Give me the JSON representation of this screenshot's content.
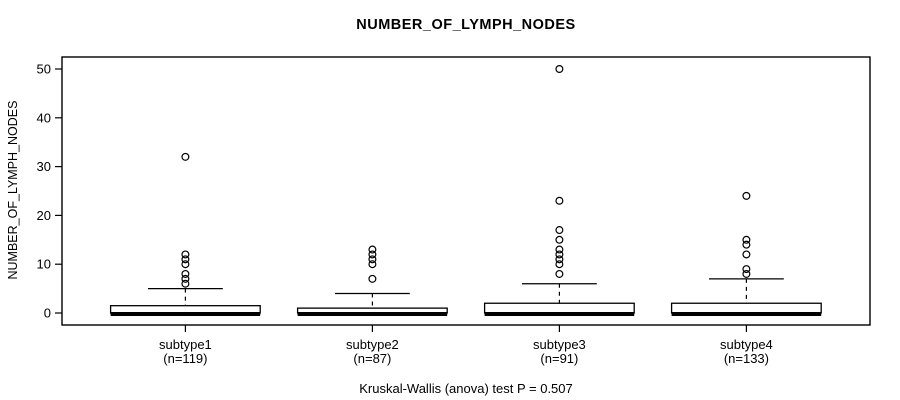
{
  "chart_data": {
    "type": "boxplot",
    "title": "NUMBER_OF_LYMPH_NODES",
    "ylabel": "NUMBER_OF_LYMPH_NODES",
    "xlabel": "",
    "footer": "Kruskal-Wallis (anova) test P = 0.507",
    "ylim": [
      0,
      50
    ],
    "yticks": [
      0,
      10,
      20,
      30,
      40,
      50
    ],
    "grid": false,
    "legend": null,
    "colors": {
      "stroke": "#000000",
      "box_fill": "#ffffff",
      "background": "#ffffff"
    },
    "groups": [
      {
        "label": "subtype1",
        "n_label": "(n=119)",
        "q1": 0,
        "median": 0,
        "q3": 1.5,
        "whisker_low": 0,
        "whisker_high": 5,
        "outliers": [
          6,
          7,
          8,
          10,
          11,
          12,
          32
        ]
      },
      {
        "label": "subtype2",
        "n_label": "(n=87)",
        "q1": 0,
        "median": 0,
        "q3": 1,
        "whisker_low": 0,
        "whisker_high": 4,
        "outliers": [
          7,
          10,
          11,
          12,
          13
        ]
      },
      {
        "label": "subtype3",
        "n_label": "(n=91)",
        "q1": 0,
        "median": 0,
        "q3": 2,
        "whisker_low": 0,
        "whisker_high": 6,
        "outliers": [
          8,
          10,
          11,
          12,
          13,
          15,
          17,
          23,
          50
        ]
      },
      {
        "label": "subtype4",
        "n_label": "(n=133)",
        "q1": 0,
        "median": 0,
        "q3": 2,
        "whisker_low": 0,
        "whisker_high": 7,
        "outliers": [
          8,
          9,
          12,
          14,
          15,
          24
        ]
      }
    ]
  }
}
